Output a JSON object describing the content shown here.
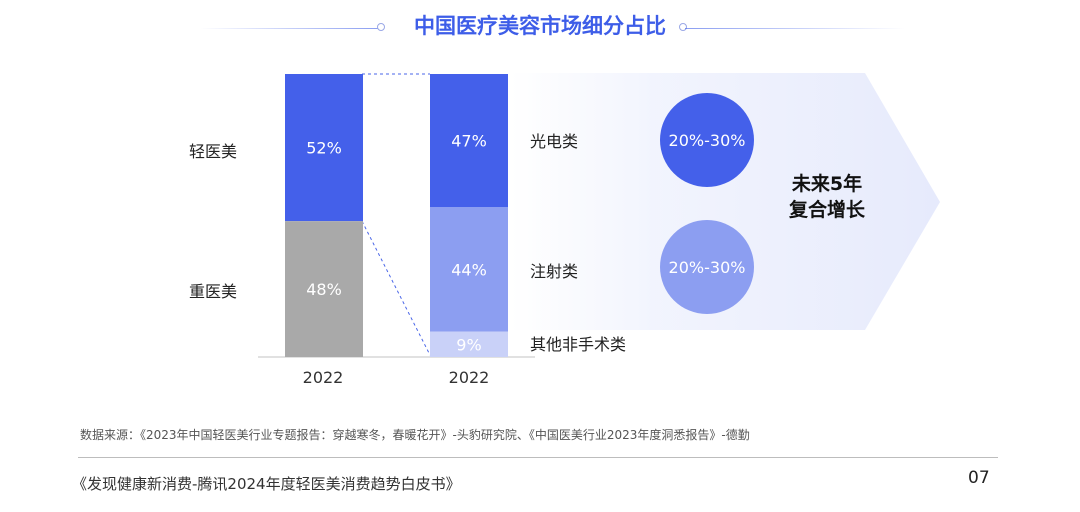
{
  "page": {
    "title": "中国医疗美容市场细分占比",
    "source_note": "数据来源：《2023年中国轻医美行业专题报告：穿越寒冬，春暖花开》-头豹研究院、《中国医美行业2023年度洞悉报告》-德勤",
    "footer": "《发现健康新消费-腾讯2024年度轻医美消费趋势白皮书》",
    "page_number": "07"
  },
  "colors": {
    "accent": "#3d5de8",
    "light_medical": "#4460ea",
    "heavy_medical": "#a9a9a9",
    "photoelectric": "#4460ea",
    "injection": "#8c9ef1",
    "other_nonsurgical": "#c9d1f8"
  },
  "chart_data": [
    {
      "type": "bar",
      "stacked": true,
      "categories": [
        "2022"
      ],
      "series": [
        {
          "name": "轻医美",
          "values": [
            52
          ],
          "label": "52%"
        },
        {
          "name": "重医美",
          "values": [
            48
          ],
          "label": "48%"
        }
      ],
      "ylim": [
        0,
        100
      ]
    },
    {
      "type": "bar",
      "stacked": true,
      "categories": [
        "2022"
      ],
      "series": [
        {
          "name": "光电类",
          "values": [
            47
          ],
          "label": "47%"
        },
        {
          "name": "注射类",
          "values": [
            44
          ],
          "label": "44%"
        },
        {
          "name": "其他非手术类",
          "values": [
            9
          ],
          "label": "9%"
        }
      ],
      "ylim": [
        0,
        100
      ]
    }
  ],
  "growth": {
    "headline_line1": "未来5年",
    "headline_line2": "复合增长",
    "circles": [
      {
        "segment": "光电类",
        "label": "20%-30%"
      },
      {
        "segment": "注射类",
        "label": "20%-30%"
      }
    ]
  }
}
